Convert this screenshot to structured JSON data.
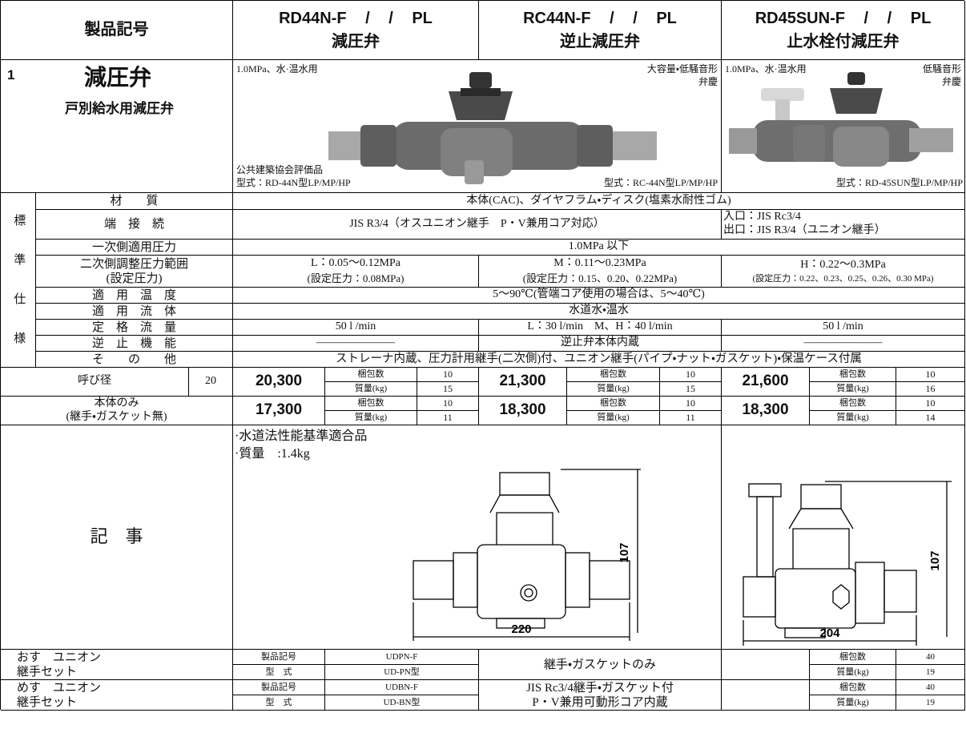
{
  "header": {
    "label": "製品記号",
    "products": [
      {
        "code": "RD44N-F / / PL",
        "name": "減圧弁"
      },
      {
        "code": "RC44N-F / / PL",
        "name": "逆止減圧弁"
      },
      {
        "code": "RD45SUN-F / / PL",
        "name": "止水栓付減圧弁"
      }
    ]
  },
  "section": {
    "number": "1",
    "title": "減圧弁",
    "subtitle": "戸別給水用減圧弁"
  },
  "images": {
    "left": {
      "spec": "1.0MPa、水·温水用",
      "certification": "公共建築協会評価品",
      "model": "型式：RD-44N型LP/MP/HP"
    },
    "middle": {
      "feature": "大容量・低騒音形",
      "maker": "弁慶",
      "model": "型式：RC-44N型LP/MP/HP"
    },
    "right": {
      "spec": "1.0MPa、水·温水用",
      "feature": "低騒音形",
      "maker": "弁慶",
      "model": "型式：RD-45SUN型LP/MP/HP"
    }
  },
  "standard_spec": {
    "label": "標準仕様",
    "material": {
      "label": "材　　質",
      "value": "本体(CAC)、ダイヤフラム・ディスク(塩素水耐性ゴム)"
    },
    "connection": {
      "label": "端　接　続",
      "value": "JIS R3/4（オスユニオン継手　P・V兼用コア対応）",
      "inlet": "入口：JIS Rc3/4",
      "outlet": "出口：JIS R3/4（ユニオン継手）"
    },
    "primary_pressure": {
      "label": "一次側適用圧力",
      "value": "1.0MPa 以下"
    },
    "secondary_pressure": {
      "label": "二次側調整圧力範囲",
      "sublabel": "(設定圧力)",
      "values": [
        {
          "range": "L：0.05〜0.12MPa",
          "setting": "(設定圧力：0.08MPa)"
        },
        {
          "range": "M：0.11〜0.23MPa",
          "setting": "(設定圧力：0.15、0.20、0.22MPa)"
        },
        {
          "range": "H：0.22〜0.3MPa",
          "setting": "(設定圧力：0.22、0.23、0.25、0.26、0.30 MPa)"
        }
      ]
    },
    "temperature": {
      "label": "適　用　温　度",
      "value": "5〜90℃(管端コア使用の場合は、5〜40℃)"
    },
    "fluid": {
      "label": "適　用　流　体",
      "value": "水道水・温水"
    },
    "flow": {
      "label": "定　格　流　量",
      "values": [
        "50 l /min",
        "L：30 l/min　M、H：40 l/min",
        "50 l /min"
      ]
    },
    "check": {
      "label": "逆　止　機　能",
      "values": [
        "―――――――",
        "逆止弁本体内蔵",
        "―――――――"
      ]
    },
    "other": {
      "label": "そ　　の　　他",
      "value": "ストレーナ内蔵、圧力計用継手(二次側)付、ユニオン継手(パイプ・ナット・ガスケット)・保温ケース付属"
    }
  },
  "pricing": {
    "nominal": {
      "label": "呼び径",
      "size": "20",
      "items": [
        {
          "price": "20,300",
          "pack_label": "梱包数",
          "pack": "10",
          "mass_label": "質量(kg)",
          "mass": "15"
        },
        {
          "price": "21,300",
          "pack_label": "梱包数",
          "pack": "10",
          "mass_label": "質量(kg)",
          "mass": "15"
        },
        {
          "price": "21,600",
          "pack_label": "梱包数",
          "pack": "10",
          "mass_label": "質量(kg)",
          "mass": "16"
        }
      ]
    },
    "body_only": {
      "label": "本体のみ",
      "sublabel": "(継手・ガスケット無)",
      "items": [
        {
          "price": "17,300",
          "pack_label": "梱包数",
          "pack": "10",
          "mass_label": "質量(kg)",
          "mass": "11"
        },
        {
          "price": "18,300",
          "pack_label": "梱包数",
          "pack": "10",
          "mass_label": "質量(kg)",
          "mass": "11"
        },
        {
          "price": "18,300",
          "pack_label": "梱包数",
          "pack": "10",
          "mass_label": "質量(kg)",
          "mass": "14"
        }
      ]
    }
  },
  "notes": {
    "label": "記　事",
    "lines": [
      "·水道法性能基準適合品",
      "·質量　:1.4kg"
    ],
    "drawing_a": {
      "height": "107",
      "width": "220"
    },
    "drawing_b": {
      "height": "107",
      "width": "204"
    }
  },
  "unions": [
    {
      "label": "おす　ユニオン",
      "sublabel": "継手セット",
      "code_label": "製品記号",
      "code": "UDPN-F",
      "model_label": "型　式",
      "model": "UD-PN型",
      "middle": [
        "継手・ガスケットのみ"
      ],
      "pack_label": "梱包数",
      "pack": "40",
      "mass_label": "質量(kg)",
      "mass": "19"
    },
    {
      "label": "めす　ユニオン",
      "sublabel": "継手セット",
      "code_label": "製品記号",
      "code": "UDBN-F",
      "model_label": "型　式",
      "model": "UD-BN型",
      "middle": [
        "JIS Rc3/4継手・ガスケット付",
        "P・V兼用可動形コア内蔵"
      ],
      "pack_label": "梱包数",
      "pack": "40",
      "mass_label": "質量(kg)",
      "mass": "19"
    }
  ]
}
